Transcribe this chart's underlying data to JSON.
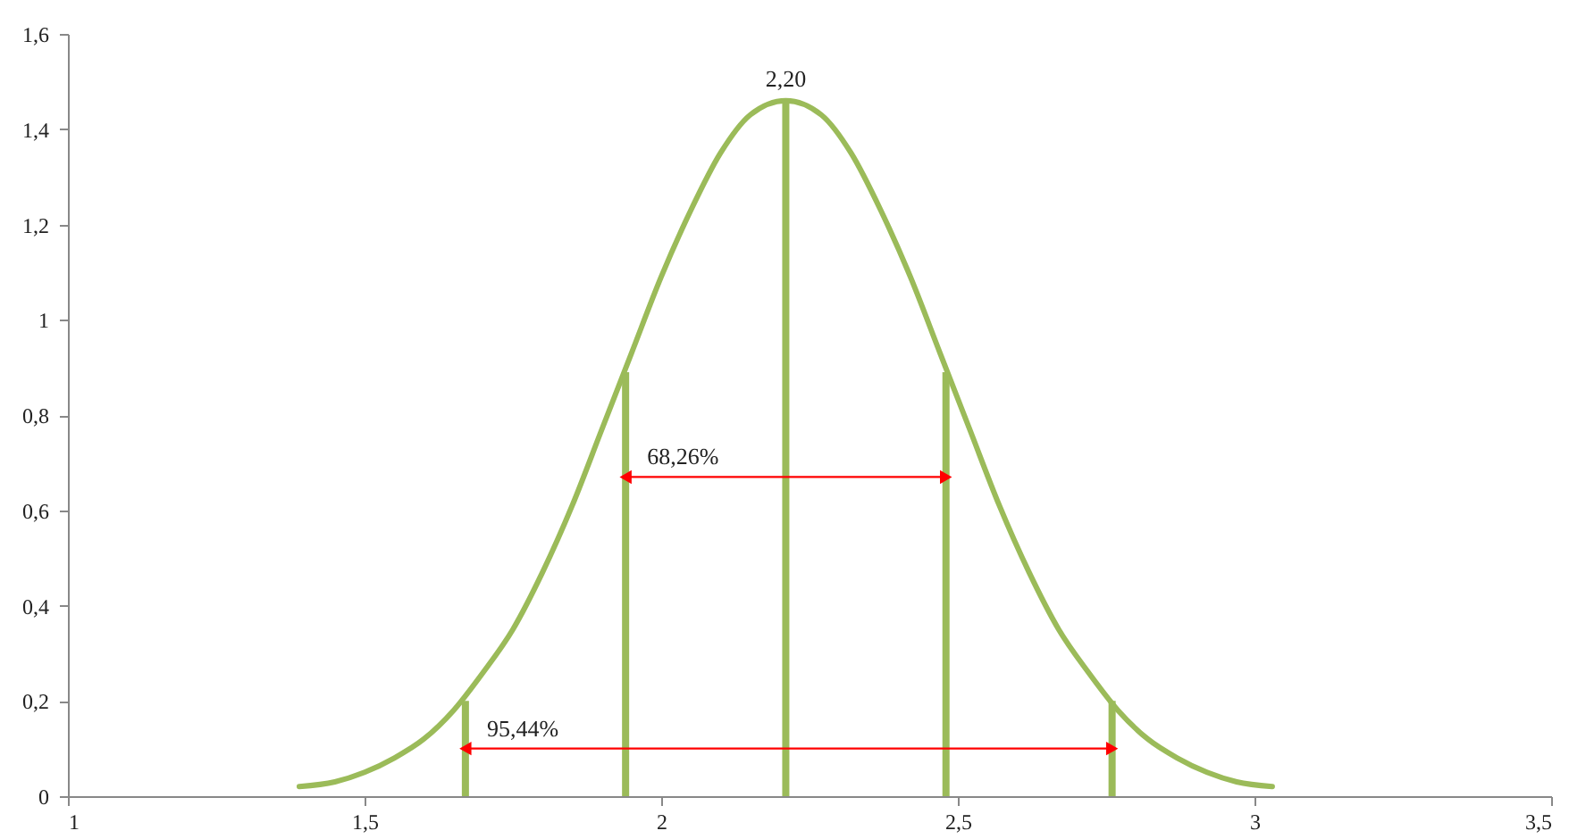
{
  "chart_data": {
    "type": "line",
    "xlim": [
      1,
      3.5
    ],
    "xticks": [
      1,
      {
        "value": 1.5,
        "label": "1,5"
      },
      2,
      {
        "value": 2.5,
        "label": "2,5"
      },
      3,
      {
        "value": 3.5,
        "label": "3,5"
      }
    ],
    "ylim": [
      0,
      1.6
    ],
    "yticks": [
      0,
      {
        "value": 0.2,
        "label": "0,2"
      },
      {
        "value": 0.4,
        "label": "0,4"
      },
      {
        "value": 0.6,
        "label": "0,6"
      },
      {
        "value": 0.8,
        "label": "0,8"
      },
      1,
      {
        "value": 1.2,
        "label": "1,2"
      },
      {
        "value": 1.4,
        "label": "1,4"
      },
      {
        "value": 1.6,
        "label": "1,6"
      }
    ],
    "grid": false,
    "series": [
      {
        "color": "#9bbb59",
        "x": [
          1.39,
          1.45,
          1.5,
          1.55,
          1.6,
          1.65,
          1.7,
          1.75,
          1.8,
          1.85,
          1.9,
          1.95,
          2.0,
          2.05,
          2.1,
          2.15,
          2.21,
          2.27,
          2.32,
          2.37,
          2.42,
          2.47,
          2.52,
          2.57,
          2.62,
          2.67,
          2.72,
          2.77,
          2.82,
          2.87,
          2.92,
          2.97,
          3.03
        ],
        "values": [
          0.02,
          0.03,
          0.05,
          0.08,
          0.12,
          0.18,
          0.26,
          0.35,
          0.47,
          0.61,
          0.77,
          0.93,
          1.09,
          1.23,
          1.35,
          1.43,
          1.46,
          1.43,
          1.35,
          1.23,
          1.09,
          0.93,
          0.77,
          0.61,
          0.47,
          0.35,
          0.26,
          0.18,
          0.12,
          0.08,
          0.05,
          0.03,
          0.02
        ]
      },
      {
        "type": "bar",
        "color": "#9bbb59",
        "x": [
          1.67,
          1.94,
          2.21,
          2.48,
          2.76
        ],
        "values": [
          0.2,
          0.89,
          1.46,
          0.89,
          0.2
        ]
      },
      {
        "name": "68,26%",
        "color": "#ff0000",
        "marker": "triangle",
        "x": [
          1.94,
          2.48
        ],
        "values": [
          0.67,
          0.67
        ]
      },
      {
        "name": "95,44%",
        "color": "#ff0000",
        "marker": "triangle",
        "x": [
          1.67,
          2.76
        ],
        "values": [
          0.1,
          0.1
        ]
      }
    ],
    "annotations": [
      {
        "text": "2,20",
        "x": 2.21,
        "y": 1.46
      }
    ]
  }
}
